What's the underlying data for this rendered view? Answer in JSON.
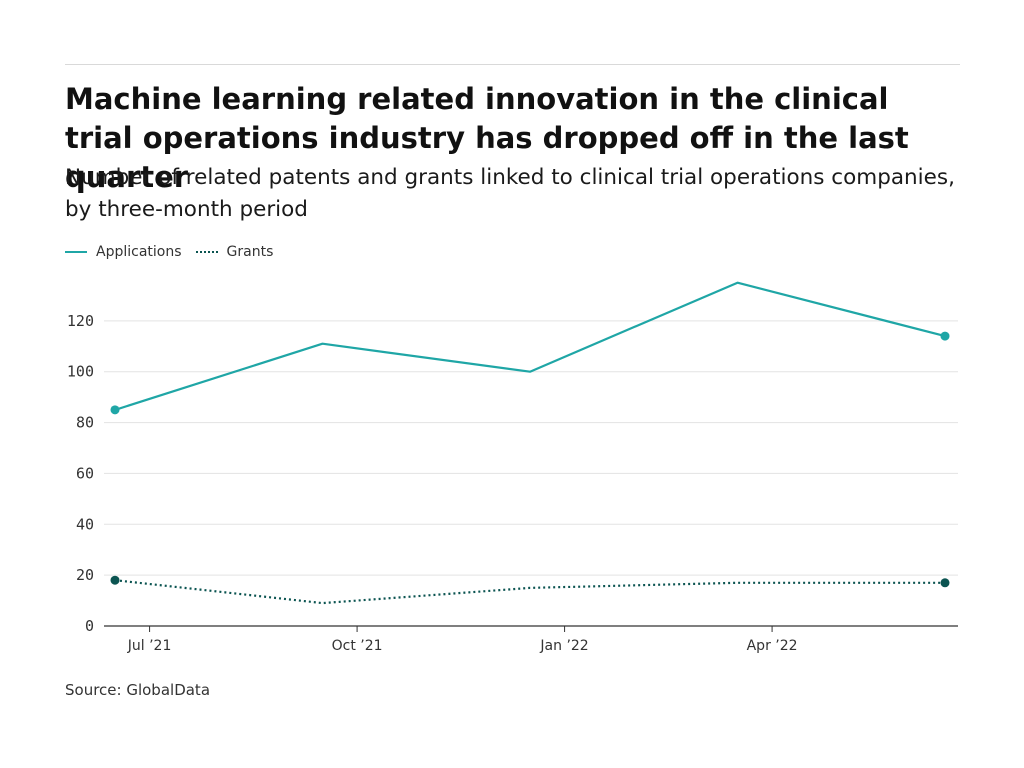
{
  "header": {
    "title": "Machine learning related innovation in the clinical trial operations industry has dropped off in the last quarter",
    "subtitle": "Number of related patents and grants linked to clinical trial operations companies, by three-month period"
  },
  "footer": {
    "source": "Source: GlobalData"
  },
  "colors": {
    "applications": "#1fa6a6",
    "grants": "#0b5451",
    "grid": "#e3e3e3",
    "axis": "#333333"
  },
  "chart_data": {
    "type": "line",
    "title": "Machine learning related innovation in the clinical trial operations industry has dropped off in the last quarter",
    "subtitle": "Number of related patents and grants linked to clinical trial operations companies, by three-month period",
    "xlabel": "",
    "ylabel": "",
    "x": [
      "2021-06",
      "2021-09",
      "2021-12",
      "2022-03",
      "2022-06"
    ],
    "x_tick_labels": [
      "Jul ’21",
      "Oct ’21",
      "Jan ’22",
      "Apr ’22"
    ],
    "y_ticks": [
      0,
      20,
      40,
      60,
      80,
      100,
      120
    ],
    "ylim": [
      0,
      140
    ],
    "grid": true,
    "legend_position": "top-left",
    "series": [
      {
        "name": "Applications",
        "style": "solid",
        "values": [
          85,
          111,
          100,
          135,
          114
        ]
      },
      {
        "name": "Grants",
        "style": "dotted",
        "values": [
          18,
          9,
          15,
          17,
          17
        ]
      }
    ]
  }
}
